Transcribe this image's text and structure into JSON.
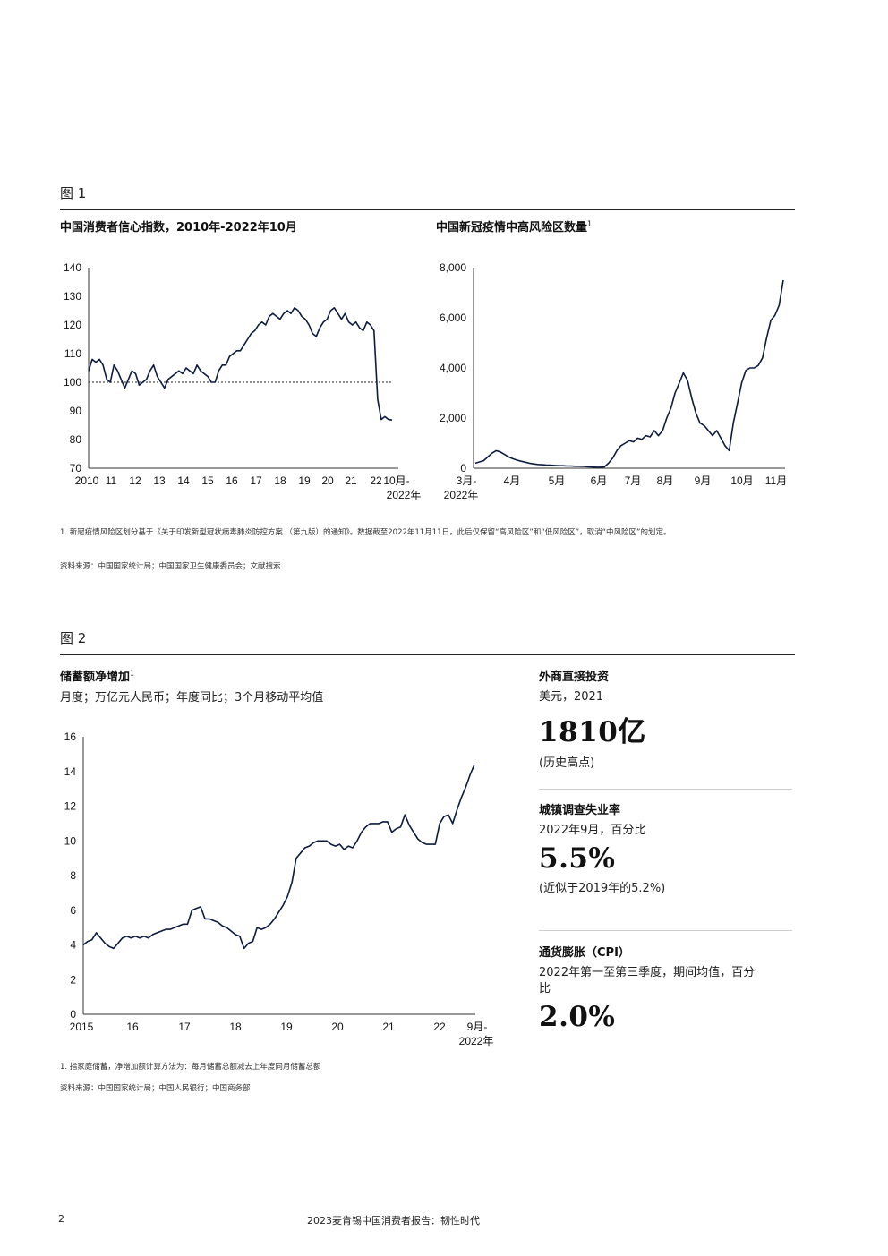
{
  "figure1": {
    "label": "图 1",
    "left_chart_title": "中国消费者信心指数，2010年-2022年10月",
    "right_chart_title": "中国新冠疫情中高风险区数量",
    "right_chart_sup": "1",
    "footnote": "1. 新冠疫情风险区划分基于《关于印发新型冠状病毒肺炎防控方案 （第九版）的通知》。数据截至2022年11月11日，此后仅保留“高风险区”和“低风险区”，取消“中风险区”的划定。",
    "source": "资料来源：中国国家统计局；中国国家卫生健康委员会；文献搜索"
  },
  "figure2": {
    "label": "图 2",
    "chart_title": "储蓄额净增加",
    "chart_sup": "1",
    "chart_subtitle": "月度；万亿元人民币；年度同比；3个月移动平均值",
    "footnote": "1. 指家庭储蓄，净增加额计算方法为：每月储蓄总额减去上年度同月储蓄总额",
    "source": "资料来源：中国国家统计局；中国人民银行；中国商务部"
  },
  "stats": [
    {
      "heading": "外商直接投资",
      "sub": "美元，2021",
      "value": "1810亿",
      "note": "(历史高点)"
    },
    {
      "heading": "城镇调查失业率",
      "sub": "2022年9月，百分比",
      "value": "5.5%",
      "note": "(近似于2019年的5.2%)"
    },
    {
      "heading": "通货膨胀（CPI）",
      "sub": "2022年第一至第三季度，期间均值，百分比",
      "value": "2.0%",
      "note": ""
    }
  ],
  "footer": {
    "page": "2",
    "title": "2023麦肯锡中国消费者报告：韧性时代"
  },
  "colors": {
    "line": "#0d1b3e",
    "axis": "#333333",
    "text": "#111111"
  },
  "chart_data": [
    {
      "type": "line",
      "title": "中国消费者信心指数，2010年-2022年10月",
      "ylim": [
        70,
        140
      ],
      "yticks": [
        "140",
        "130",
        "120",
        "110",
        "100",
        "90",
        "80",
        "70"
      ],
      "xticks": [
        "2010",
        "11",
        "12",
        "13",
        "14",
        "15",
        "16",
        "17",
        "18",
        "19",
        "20",
        "21",
        "22",
        "10月-",
        "2022年"
      ],
      "reference_line": {
        "y": 100,
        "style": "dashed"
      },
      "series": [
        {
          "values": [
            104,
            108,
            107,
            108,
            106,
            101,
            100,
            106,
            104,
            101,
            98,
            101,
            104,
            103,
            99,
            100,
            101,
            104,
            106,
            102,
            100,
            98,
            101,
            102,
            103,
            104,
            103,
            105,
            104,
            103,
            106,
            104,
            103,
            102,
            100,
            100,
            104,
            106,
            106,
            109,
            110,
            111,
            111,
            113,
            115,
            117,
            118,
            120,
            121,
            120,
            123,
            124,
            123,
            122,
            124,
            125,
            124,
            126,
            125,
            123,
            122,
            120,
            117,
            116,
            119,
            121,
            122,
            125,
            126,
            124,
            122,
            124,
            121,
            120,
            121,
            119,
            118,
            121,
            120,
            118,
            94,
            87,
            88,
            87,
            86.8
          ]
        }
      ]
    },
    {
      "type": "line",
      "title": "中国新冠疫情中高风险区数量",
      "ylim": [
        0,
        8000
      ],
      "yticks": [
        "8,000",
        "6,000",
        "4,000",
        "2,000",
        "0"
      ],
      "xticks": [
        "3月-",
        "2022年",
        "4月",
        "5月",
        "6月",
        "7月",
        "8月",
        "9月",
        "10月",
        "11月"
      ],
      "series": [
        {
          "values": [
            200,
            250,
            300,
            450,
            600,
            700,
            650,
            550,
            450,
            380,
            320,
            280,
            240,
            200,
            170,
            150,
            140,
            130,
            120,
            110,
            100,
            100,
            90,
            90,
            80,
            80,
            70,
            60,
            50,
            40,
            40,
            50,
            200,
            400,
            700,
            900,
            1000,
            1100,
            1050,
            1200,
            1150,
            1300,
            1250,
            1500,
            1300,
            1500,
            2000,
            2400,
            3000,
            3400,
            3800,
            3500,
            2800,
            2200,
            1800,
            1700,
            1500,
            1300,
            1500,
            1200,
            900,
            700,
            1800,
            2600,
            3400,
            3900,
            4000,
            4000,
            4100,
            4400,
            5200,
            5900,
            6100,
            6500,
            7500
          ]
        }
      ]
    },
    {
      "type": "line",
      "title": "储蓄额净增加",
      "subtitle": "月度；万亿元人民币；年度同比；3个月移动平均值",
      "ylim": [
        0,
        16
      ],
      "yticks": [
        "16",
        "14",
        "12",
        "10",
        "8",
        "6",
        "4",
        "2",
        "0"
      ],
      "xticks": [
        "2015",
        "16",
        "17",
        "18",
        "19",
        "20",
        "21",
        "22",
        "9月-",
        "2022年"
      ],
      "series": [
        {
          "values": [
            4.0,
            4.2,
            4.3,
            4.7,
            4.4,
            4.1,
            3.9,
            3.8,
            4.1,
            4.4,
            4.5,
            4.4,
            4.5,
            4.4,
            4.5,
            4.4,
            4.6,
            4.7,
            4.8,
            4.9,
            4.9,
            5.0,
            5.1,
            5.2,
            5.2,
            6.0,
            6.1,
            6.2,
            5.5,
            5.5,
            5.4,
            5.3,
            5.1,
            5.0,
            4.8,
            4.6,
            4.5,
            3.8,
            4.1,
            4.2,
            5.0,
            4.9,
            5.0,
            5.2,
            5.5,
            5.9,
            6.3,
            6.8,
            7.6,
            9.0,
            9.3,
            9.6,
            9.7,
            9.9,
            10.0,
            10.0,
            10.0,
            9.8,
            9.7,
            9.8,
            9.5,
            9.7,
            9.6,
            10.0,
            10.5,
            10.8,
            11.0,
            11.0,
            11.0,
            11.1,
            11.1,
            10.5,
            10.7,
            10.8,
            11.5,
            10.9,
            10.5,
            10.1,
            9.9,
            9.8,
            9.8,
            9.8,
            11.0,
            11.4,
            11.5,
            11.0,
            11.8,
            12.5,
            13.1,
            13.8,
            14.4
          ]
        }
      ]
    }
  ]
}
